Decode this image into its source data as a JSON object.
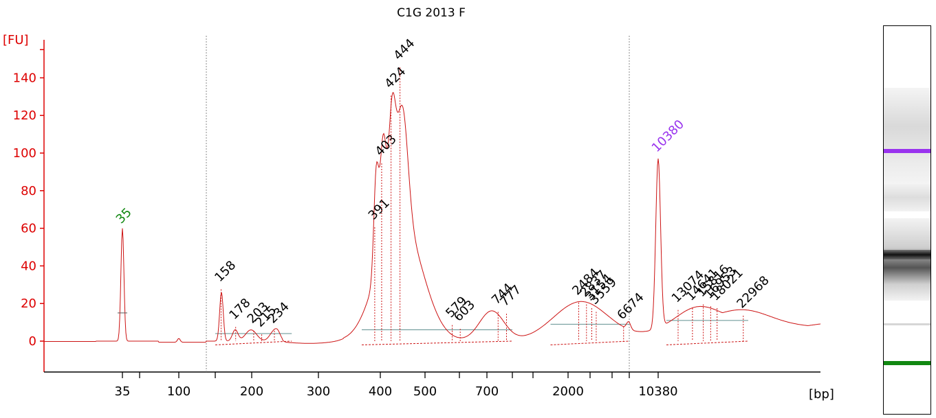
{
  "chart_data": {
    "type": "line",
    "title": "C1G 2013  F",
    "ylabel": "[FU]",
    "xlabel": "[bp]",
    "ylim": [
      -15,
      160
    ],
    "yticks": [
      0,
      20,
      40,
      60,
      80,
      100,
      120,
      140
    ],
    "xticks": [
      "35",
      "100",
      "200",
      "300",
      "400",
      "500",
      "700",
      "2000",
      "10380"
    ],
    "line_color": "#cc1111",
    "axis_color": "#dd0000",
    "marker_colors": {
      "lower": "#118811",
      "upper": "#9933ee"
    },
    "peaks": [
      {
        "label": "35",
        "x": 35,
        "value": 60,
        "kind": "lower"
      },
      {
        "label": "158",
        "x": 158,
        "value": 29
      },
      {
        "label": "178",
        "x": 178,
        "value": 9
      },
      {
        "label": "203",
        "x": 203,
        "value": 7
      },
      {
        "label": "215",
        "x": 215,
        "value": 5
      },
      {
        "label": "234",
        "x": 234,
        "value": 7
      },
      {
        "label": "391",
        "x": 391,
        "value": 62
      },
      {
        "label": "403",
        "x": 403,
        "value": 96
      },
      {
        "label": "424",
        "x": 424,
        "value": 132
      },
      {
        "label": "444",
        "x": 444,
        "value": 147
      },
      {
        "label": "579",
        "x": 579,
        "value": 10
      },
      {
        "label": "603",
        "x": 603,
        "value": 8
      },
      {
        "label": "744",
        "x": 744,
        "value": 17
      },
      {
        "label": "777",
        "x": 777,
        "value": 16
      },
      {
        "label": "2484",
        "x": 2484,
        "value": 22
      },
      {
        "label": "2837",
        "x": 2837,
        "value": 21
      },
      {
        "label": "3154",
        "x": 3154,
        "value": 19
      },
      {
        "label": "3559",
        "x": 3559,
        "value": 17
      },
      {
        "label": "6674",
        "x": 6674,
        "value": 9
      },
      {
        "label": "10380",
        "x": 10380,
        "value": 98,
        "kind": "upper"
      },
      {
        "label": "13074",
        "x": 13074,
        "value": 18
      },
      {
        "label": "14641",
        "x": 14641,
        "value": 19
      },
      {
        "label": "15816",
        "x": 15816,
        "value": 21
      },
      {
        "label": "16953",
        "x": 16953,
        "value": 20
      },
      {
        "label": "18021",
        "x": 18021,
        "value": 19
      },
      {
        "label": "22968",
        "x": 22968,
        "value": 15
      }
    ],
    "smear_regions": [
      {
        "x_start": 150,
        "x_end": 260,
        "baseline": 4
      },
      {
        "x_start": 370,
        "x_end": 800,
        "baseline": 6
      },
      {
        "x_start": 1500,
        "x_end": 7500,
        "baseline": 9
      },
      {
        "x_start": 11500,
        "x_end": 24000,
        "baseline": 11
      }
    ],
    "region_markers": [
      {
        "x": 140
      },
      {
        "x": 7500
      }
    ],
    "grid": false
  },
  "gel_image": {
    "lower_marker_color": "#118811",
    "upper_marker_color": "#9933ee"
  }
}
